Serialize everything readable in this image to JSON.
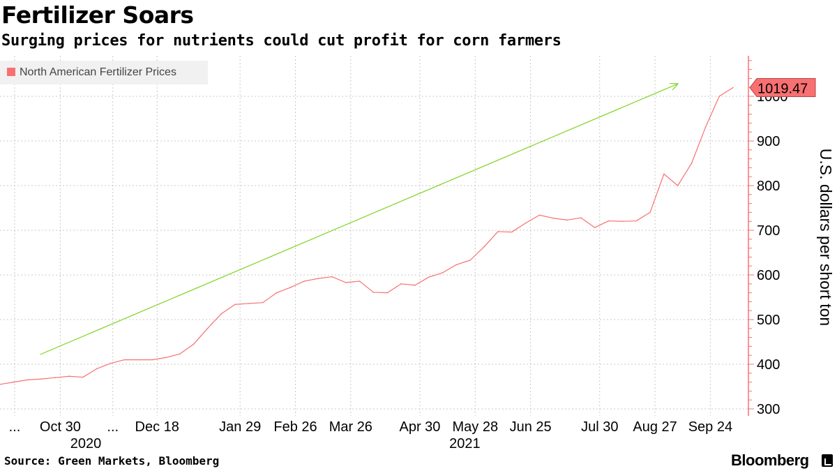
{
  "header": {
    "title": "Fertilizer Soars",
    "subtitle": "Surging prices for nutrients could cut profit for corn farmers"
  },
  "footer": {
    "source": "Source: Green Markets, Bloomberg",
    "brand": "Bloomberg"
  },
  "colors": {
    "series": "#f87071",
    "trend_arrow": "#7ed321",
    "grid": "#c8c8c8",
    "axis": "#f87071",
    "legend_bg": "#f1f1f1"
  },
  "chart_data": {
    "type": "line",
    "title": "Fertilizer Soars",
    "subtitle": "Surging prices for nutrients could cut profit for corn farmers",
    "ylabel": "U.S. dollars per short ton",
    "xlabel": "",
    "ylim": [
      290,
      1095
    ],
    "yticks": [
      300,
      400,
      500,
      600,
      700,
      800,
      900,
      1000
    ],
    "xlim_weeks": [
      0,
      54
    ],
    "x_ticks": [
      {
        "label": "...",
        "week": 0.3
      },
      {
        "label": "Oct 30",
        "week": 3.6
      },
      {
        "label": "...",
        "week": 7.4
      },
      {
        "label": "Dec 18",
        "week": 10.6
      },
      {
        "label": "Jan 29",
        "week": 16.6
      },
      {
        "label": "Feb 26",
        "week": 20.6
      },
      {
        "label": "Mar 26",
        "week": 24.6
      },
      {
        "label": "Apr 30",
        "week": 29.6
      },
      {
        "label": "May 28",
        "week": 33.6
      },
      {
        "label": "Jun 25",
        "week": 37.6
      },
      {
        "label": "Jul 30",
        "week": 42.6
      },
      {
        "label": "Aug 27",
        "week": 46.6
      },
      {
        "label": "Sep 24",
        "week": 50.6
      }
    ],
    "year_labels": [
      {
        "label": "2020",
        "week": 5.6
      },
      {
        "label": "2021",
        "week": 33.0
      }
    ],
    "grid": true,
    "legend": {
      "position": "top-left",
      "entries": [
        "North American Fertilizer Prices"
      ]
    },
    "series": [
      {
        "name": "North American Fertilizer Prices",
        "weeks": [
          0,
          1,
          2,
          3,
          4,
          5,
          6,
          7,
          8,
          9,
          10,
          11,
          12,
          13,
          14,
          15,
          16,
          17,
          18,
          19,
          20,
          21,
          22,
          23,
          24,
          25,
          26,
          27,
          28,
          29,
          30,
          31,
          32,
          33,
          34,
          35,
          36,
          37,
          38,
          39,
          40,
          41,
          42,
          43,
          44,
          45,
          46,
          47,
          48,
          49,
          50,
          51,
          52,
          53
        ],
        "values": [
          355,
          360,
          365,
          367,
          370,
          373,
          371,
          390,
          402,
          410,
          410,
          410,
          415,
          423,
          445,
          480,
          513,
          534,
          536,
          538,
          560,
          572,
          586,
          592,
          596,
          583,
          586,
          561,
          560,
          580,
          577,
          595,
          605,
          623,
          633,
          663,
          697,
          696,
          716,
          734,
          727,
          723,
          728,
          706,
          721,
          720,
          721,
          740,
          826,
          800,
          850,
          930,
          1000,
          1019.47
        ]
      }
    ],
    "last_value_label": "1019.47",
    "annotations": [
      {
        "type": "arrow",
        "description": "upward trend arrow",
        "from": {
          "week": 2,
          "value": 426
        },
        "to": {
          "week": 49,
          "value": 1026
        }
      }
    ]
  }
}
